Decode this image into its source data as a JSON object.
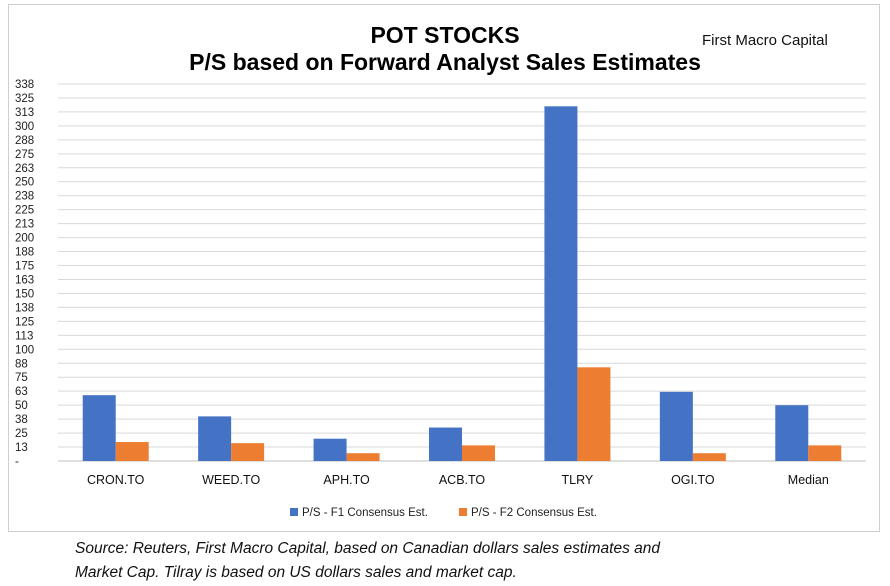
{
  "chart_data": {
    "type": "bar",
    "title": "POT STOCKS",
    "subtitle": "P/S based on Forward Analyst Sales Estimates",
    "watermark": "First Macro Capital",
    "categories": [
      "CRON.TO",
      "WEED.TO",
      "APH.TO",
      "ACB.TO",
      "TLRY",
      "OGI.TO",
      "Median"
    ],
    "series": [
      {
        "name": "P/S - F1 Consensus Est.",
        "color": "#4472C4",
        "values": [
          59,
          40,
          20,
          30,
          318,
          62,
          50
        ]
      },
      {
        "name": "P/S - F2 Consensus Est.",
        "color": "#ED7D31",
        "values": [
          17,
          16,
          7,
          14,
          84,
          7,
          14
        ]
      }
    ],
    "yticks": [
      "-",
      "13",
      "25",
      "38",
      "50",
      "63",
      "75",
      "88",
      "100",
      "113",
      "125",
      "138",
      "150",
      "163",
      "175",
      "188",
      "200",
      "213",
      "225",
      "238",
      "250",
      "263",
      "275",
      "288",
      "300",
      "313",
      "325",
      "338"
    ],
    "ylim": [
      0,
      338
    ],
    "grid": true,
    "legend_position": "bottom"
  },
  "caption": {
    "line1": "Source: Reuters, First Macro Capital, based on Canadian dollars sales estimates and",
    "line2": "Market Cap. Tilray is based on US dollars sales and market cap."
  }
}
